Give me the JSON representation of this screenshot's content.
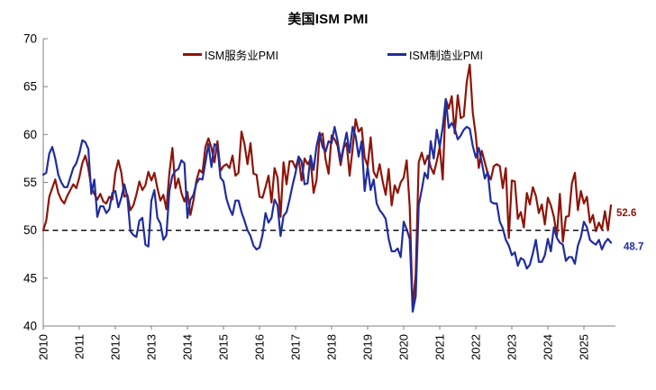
{
  "title": "美国ISM PMI",
  "legend": [
    {
      "label": "ISM服务业PMI",
      "color": "#8E1409"
    },
    {
      "label": "ISM制造业PMI",
      "color": "#1F2D9E"
    }
  ],
  "chart_data": {
    "type": "line",
    "title": "美国ISM PMI",
    "xlabel": "",
    "ylabel": "",
    "x_start": "2010-01",
    "x_end": "2025-10",
    "x_frequency": "monthly",
    "x_tick_labels": [
      "2010",
      "2011",
      "2012",
      "2013",
      "2014",
      "2015",
      "2016",
      "2017",
      "2018",
      "2019",
      "2020",
      "2021",
      "2022",
      "2023",
      "2024",
      "2025"
    ],
    "ylim": [
      40,
      70
    ],
    "y_ticks": [
      40,
      45,
      50,
      55,
      60,
      65,
      70
    ],
    "grid": false,
    "legend_position": "top",
    "axis_color": "#808080",
    "reference_line": {
      "value": 50,
      "style": "dashed",
      "color": "#000000"
    },
    "series": [
      {
        "name": "ISM服务业PMI",
        "color": "#8E1409",
        "end_label": "52.6",
        "values": [
          50.0,
          51.0,
          53.5,
          54.4,
          55.3,
          53.9,
          53.2,
          52.8,
          53.6,
          54.2,
          54.8,
          54.4,
          55.5,
          57.0,
          57.8,
          56.5,
          54.5,
          53.8,
          53.2,
          53.8,
          53.0,
          52.8,
          53.5,
          53.2,
          56.0,
          57.3,
          56.0,
          53.5,
          53.7,
          52.1,
          52.6,
          53.7,
          55.1,
          54.2,
          54.7,
          56.1,
          55.2,
          56.0,
          54.4,
          53.1,
          53.7,
          52.2,
          56.0,
          58.6,
          54.4,
          55.4,
          53.9,
          53.0,
          54.0,
          51.6,
          53.1,
          55.2,
          56.3,
          56.0,
          58.7,
          59.6,
          58.6,
          57.1,
          59.3,
          56.2,
          56.7,
          56.9,
          56.5,
          57.8,
          55.7,
          56.0,
          60.3,
          59.0,
          56.9,
          59.1,
          55.9,
          55.8,
          53.5,
          53.4,
          54.5,
          55.7,
          52.9,
          56.5,
          55.5,
          51.4,
          57.1,
          54.8,
          57.2,
          57.2,
          56.5,
          57.6,
          55.2,
          57.5,
          56.9,
          57.4,
          53.9,
          55.3,
          59.8,
          60.1,
          57.4,
          55.9,
          59.9,
          59.5,
          58.8,
          56.8,
          58.6,
          59.1,
          55.7,
          58.5,
          61.6,
          60.3,
          60.7,
          57.6,
          56.7,
          59.7,
          56.1,
          55.5,
          56.9,
          55.1,
          53.7,
          56.4,
          52.6,
          54.7,
          53.9,
          55.0,
          55.5,
          57.3,
          52.5,
          41.8,
          45.4,
          57.1,
          58.1,
          56.9,
          57.8,
          56.6,
          55.9,
          57.2,
          58.7,
          55.3,
          63.7,
          62.7,
          64.0,
          60.1,
          64.1,
          61.7,
          61.9,
          65.5,
          67.3,
          62.3,
          59.9,
          56.5,
          58.3,
          57.1,
          55.9,
          55.3,
          56.7,
          56.9,
          56.7,
          54.4,
          56.5,
          49.2,
          55.2,
          55.1,
          51.2,
          51.9,
          50.3,
          53.9,
          52.7,
          54.5,
          53.6,
          51.8,
          52.7,
          50.6,
          53.4,
          52.6,
          51.4,
          49.4,
          53.8,
          48.8,
          51.4,
          51.5,
          54.9,
          56.0,
          52.1,
          54.1,
          52.8,
          53.5,
          50.8,
          51.6,
          49.9,
          50.8,
          50.1,
          52.0,
          50.0,
          52.6
        ]
      },
      {
        "name": "ISM制造业PMI",
        "color": "#1F2D9E",
        "end_label": "48.7",
        "values": [
          55.8,
          56.0,
          58.0,
          58.7,
          57.5,
          55.8,
          55.0,
          54.5,
          54.5,
          55.5,
          56.5,
          57.0,
          58.0,
          59.4,
          59.2,
          58.5,
          53.8,
          55.3,
          51.4,
          52.5,
          52.5,
          51.8,
          52.2,
          53.9,
          54.1,
          52.4,
          53.4,
          54.8,
          53.5,
          49.9,
          49.5,
          49.3,
          51.0,
          51.3,
          48.5,
          48.3,
          53.1,
          54.2,
          51.3,
          50.7,
          49.0,
          49.5,
          54.1,
          55.7,
          56.2,
          56.4,
          57.3,
          57.0,
          51.3,
          53.2,
          53.7,
          54.9,
          55.4,
          55.3,
          57.1,
          59.0,
          56.6,
          59.0,
          58.7,
          55.5,
          55.1,
          53.3,
          52.3,
          51.6,
          53.1,
          53.1,
          51.9,
          51.0,
          50.0,
          49.4,
          48.4,
          48.0,
          48.2,
          49.5,
          51.8,
          50.8,
          51.3,
          53.2,
          52.6,
          49.4,
          51.5,
          51.9,
          53.2,
          54.7,
          56.0,
          57.7,
          57.2,
          54.8,
          54.9,
          57.8,
          56.3,
          58.8,
          60.2,
          58.7,
          58.2,
          59.3,
          59.1,
          60.8,
          59.3,
          57.3,
          58.7,
          60.2,
          58.1,
          60.8,
          59.8,
          57.7,
          59.3,
          54.1,
          56.6,
          54.2,
          55.3,
          52.8,
          52.1,
          51.7,
          51.2,
          49.1,
          47.8,
          47.8,
          48.1,
          47.2,
          50.9,
          50.1,
          49.1,
          41.5,
          43.1,
          52.6,
          54.2,
          56.0,
          55.4,
          59.3,
          57.5,
          60.5,
          58.7,
          60.8,
          63.7,
          60.7,
          61.2,
          60.6,
          59.5,
          59.9,
          60.5,
          60.8,
          60.6,
          58.8,
          57.6,
          58.6,
          57.1,
          55.4,
          56.1,
          53.0,
          52.8,
          52.8,
          50.9,
          50.2,
          49.0,
          48.4,
          47.4,
          47.7,
          46.3,
          47.1,
          46.9,
          46.0,
          46.4,
          47.6,
          49.0,
          46.7,
          46.7,
          47.4,
          49.1,
          47.8,
          50.3,
          49.2,
          48.7,
          48.5,
          46.8,
          47.2,
          47.2,
          46.5,
          48.4,
          49.3,
          50.9,
          50.3,
          49.0,
          48.7,
          48.5,
          49.0,
          48.0,
          48.7,
          49.1,
          48.7
        ]
      }
    ]
  }
}
